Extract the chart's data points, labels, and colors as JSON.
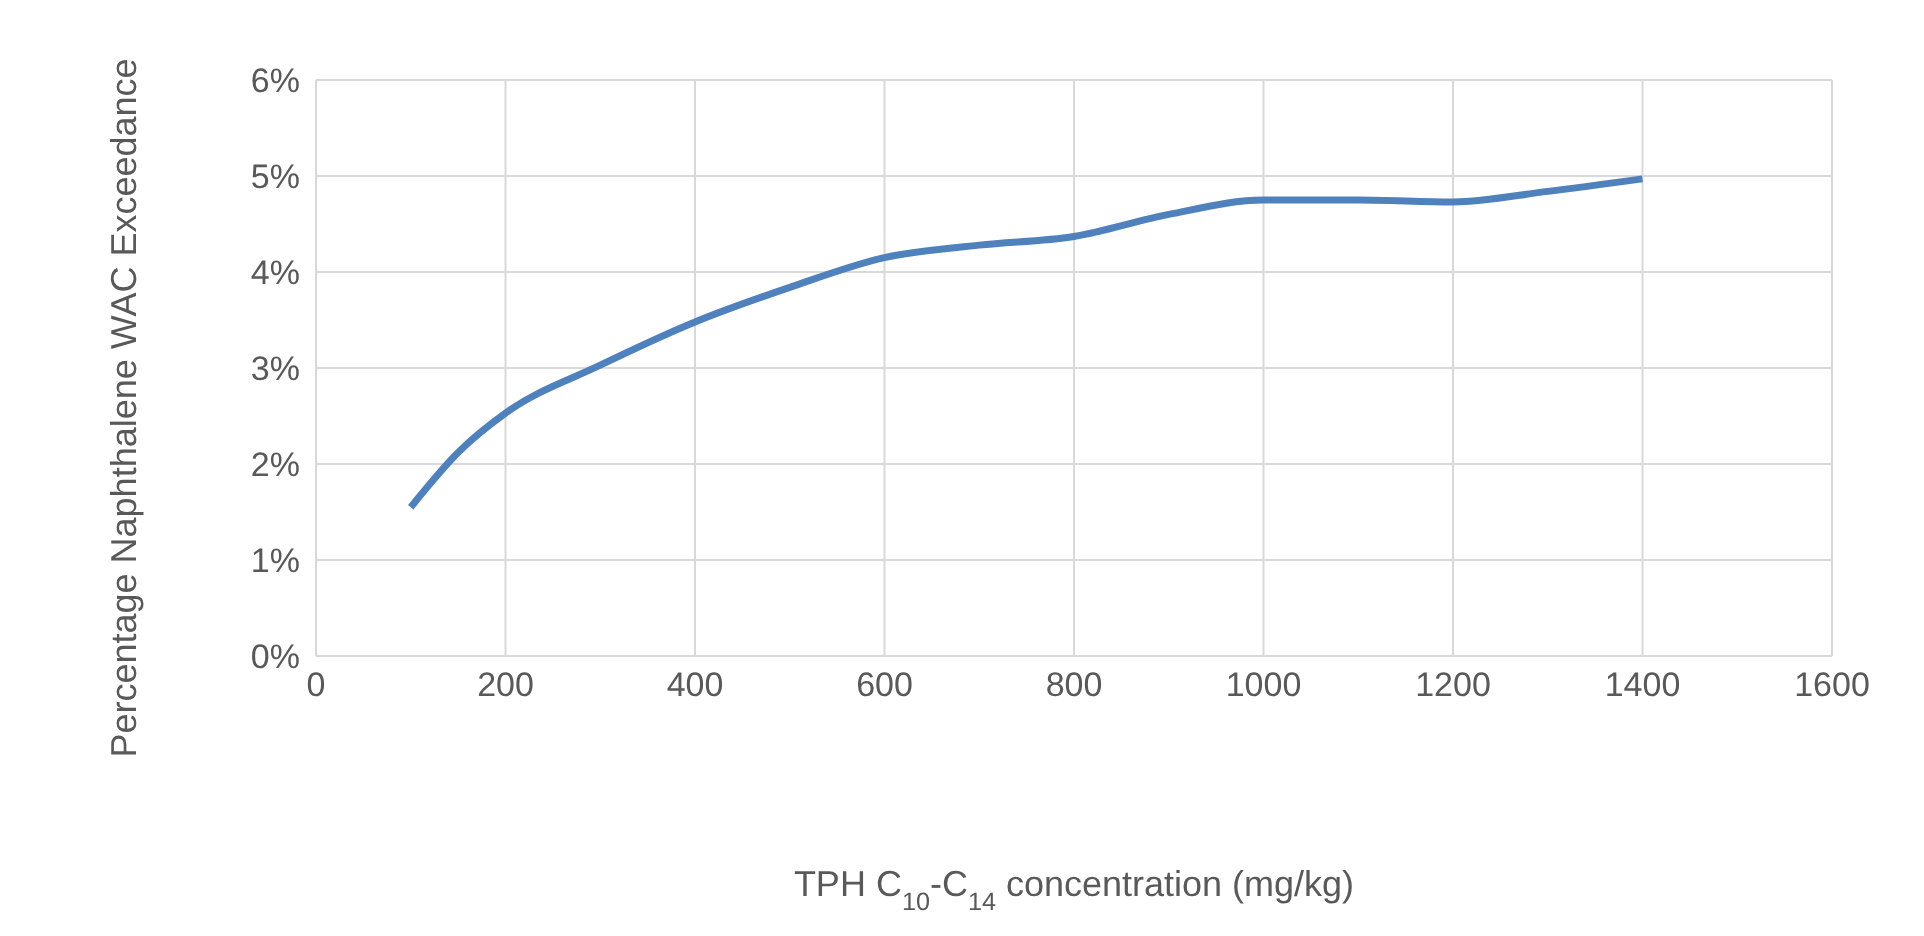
{
  "chart_data": {
    "type": "line",
    "xlabel": "TPH C$_{10}$-C$_{14}$ concentration (mg/kg)",
    "ylabel": "Percentage Naphthalene WAC Exceedance",
    "x": [
      100,
      150,
      200,
      300,
      400,
      500,
      600,
      700,
      800,
      900,
      1000,
      1100,
      1200,
      1300,
      1400
    ],
    "series": [
      {
        "color": "#4f81bd",
        "values": [
          1.55,
          2.12,
          2.53,
          3.03,
          3.48,
          3.84,
          4.15,
          4.28,
          4.37,
          4.6,
          4.75,
          4.75,
          4.73,
          4.84,
          4.97
        ]
      }
    ],
    "xlim": [
      0,
      1600
    ],
    "xticks": [
      0,
      200,
      400,
      600,
      800,
      1000,
      1200,
      1400,
      1600
    ],
    "ylim": [
      0,
      6
    ],
    "yticks": [
      {
        "value": 0,
        "label": "0%"
      },
      {
        "value": 1,
        "label": "1%"
      },
      {
        "value": 2,
        "label": "2%"
      },
      {
        "value": 3,
        "label": "3%"
      },
      {
        "value": 4,
        "label": "4%"
      },
      {
        "value": 5,
        "label": "5%"
      },
      {
        "value": 6,
        "label": "6%"
      }
    ],
    "grid": true,
    "marker": "none",
    "line_style": "solid"
  }
}
